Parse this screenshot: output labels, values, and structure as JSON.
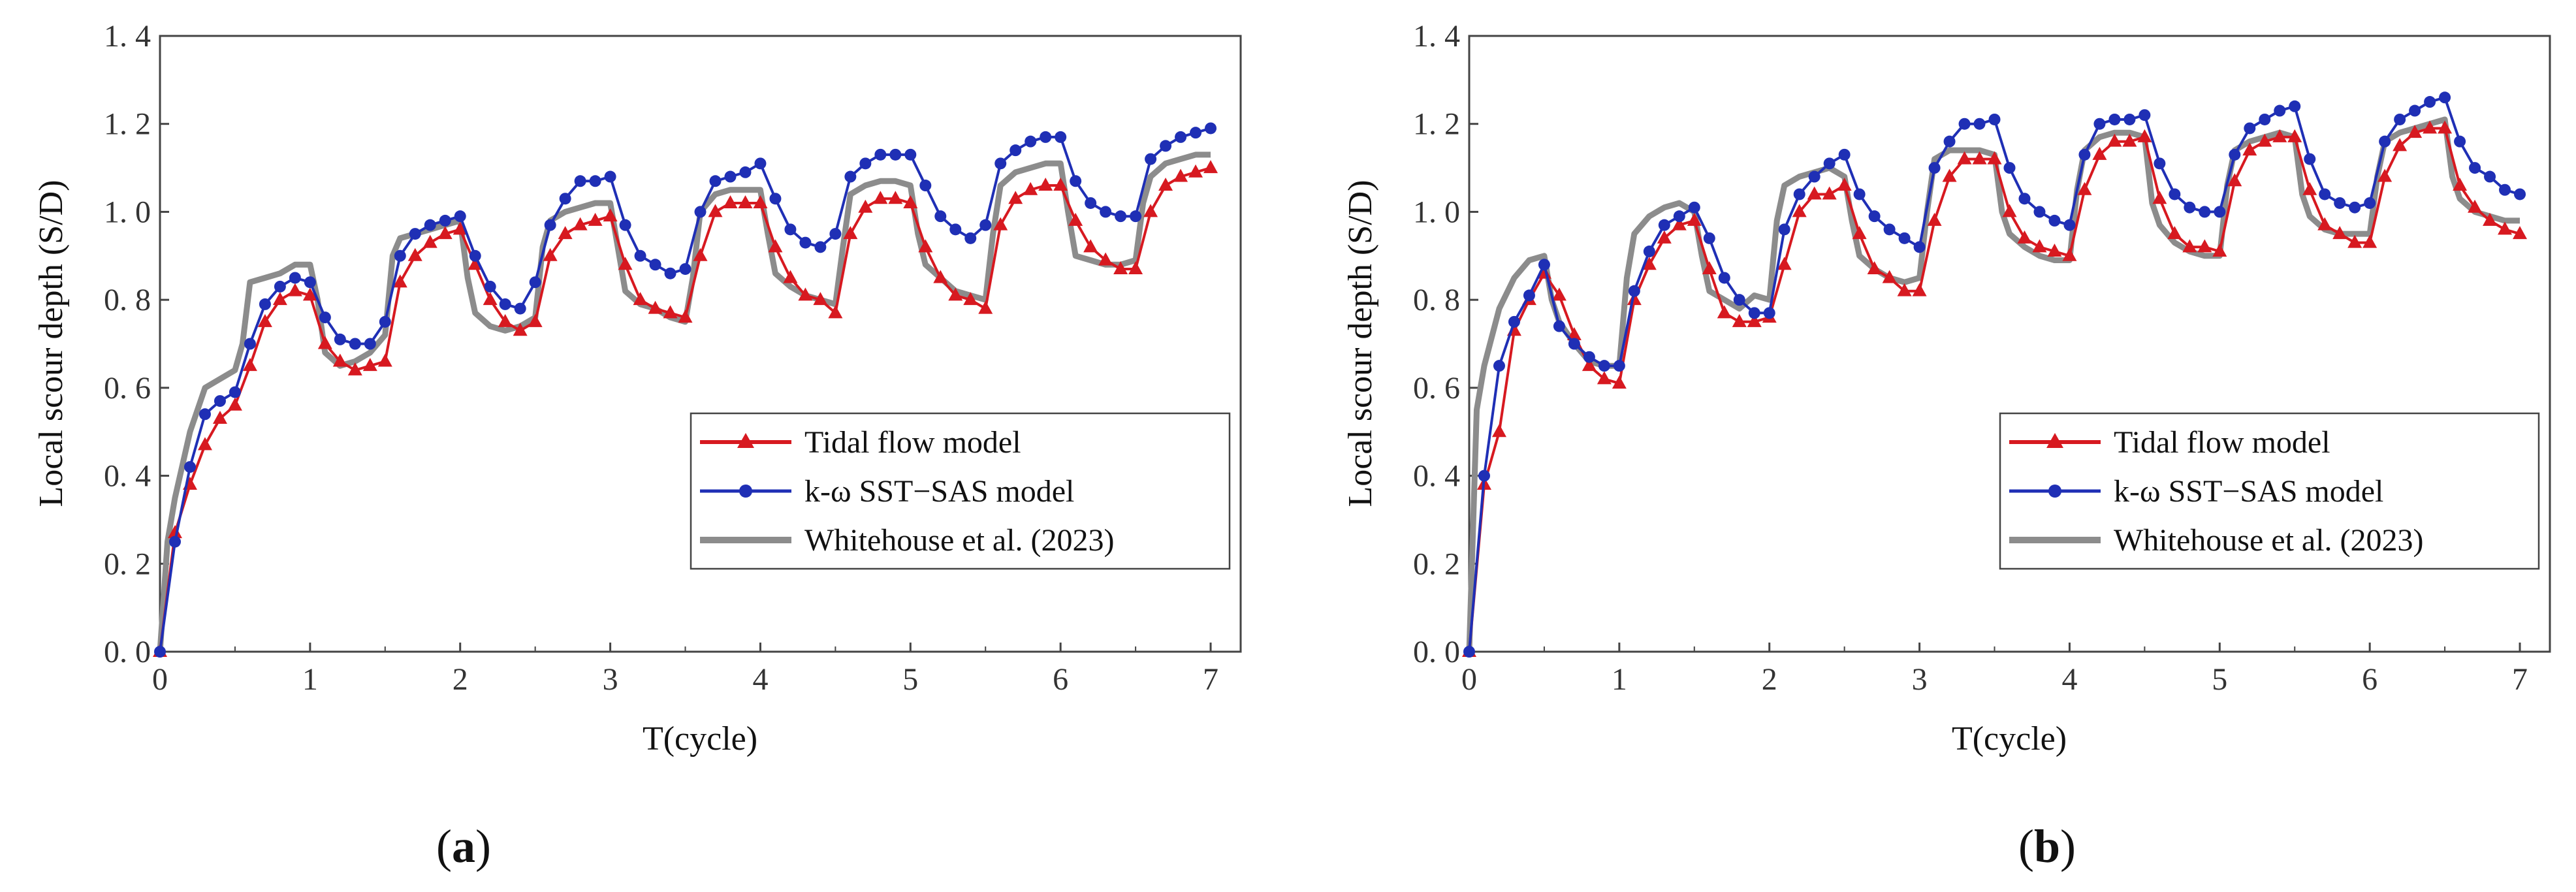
{
  "panels_labels": [
    {
      "open": "(",
      "letter": "a",
      "close": ")"
    },
    {
      "open": "(",
      "letter": "b",
      "close": ")"
    }
  ],
  "colors": {
    "tidal": "#d71920",
    "sst": "#1f2fb5",
    "white": "#8c8c8c",
    "axis": "#444444"
  },
  "chart_data": [
    {
      "type": "line",
      "xlabel": "T(cycle)",
      "ylabel": "Local scour depth (S/D)",
      "xlim": [
        0,
        7.2
      ],
      "ylim": [
        0,
        1.4
      ],
      "xticks": [
        0,
        1,
        2,
        3,
        4,
        5,
        6,
        7
      ],
      "yticks": [
        0.0,
        0.2,
        0.4,
        0.6,
        0.8,
        1.0,
        1.2,
        1.4
      ],
      "ytick_labels": [
        "0. 0",
        "0. 2",
        "0. 4",
        "0. 6",
        "0. 8",
        "1. 0",
        "1. 2",
        "1. 4"
      ],
      "legend": [
        "Tidal flow model",
        "k-ω SST−SAS model",
        "Whitehouse et al. (2023)"
      ],
      "series": [
        {
          "name": "Tidal flow model",
          "marker": "triangle",
          "x": [
            0,
            0.1,
            0.2,
            0.3,
            0.4,
            0.5,
            0.6,
            0.7,
            0.8,
            0.9,
            1.0,
            1.1,
            1.2,
            1.3,
            1.4,
            1.5,
            1.6,
            1.7,
            1.8,
            1.9,
            2.0,
            2.1,
            2.2,
            2.3,
            2.4,
            2.5,
            2.6,
            2.7,
            2.8,
            2.9,
            3.0,
            3.1,
            3.2,
            3.3,
            3.4,
            3.5,
            3.6,
            3.7,
            3.8,
            3.9,
            4.0,
            4.1,
            4.2,
            4.3,
            4.4,
            4.5,
            4.6,
            4.7,
            4.8,
            4.9,
            5.0,
            5.1,
            5.2,
            5.3,
            5.4,
            5.5,
            5.6,
            5.7,
            5.8,
            5.9,
            6.0,
            6.1,
            6.2,
            6.3,
            6.4,
            6.5,
            6.6,
            6.7,
            6.8,
            6.9,
            7.0
          ],
          "y": [
            0.0,
            0.27,
            0.38,
            0.47,
            0.53,
            0.56,
            0.65,
            0.75,
            0.8,
            0.82,
            0.81,
            0.7,
            0.66,
            0.64,
            0.65,
            0.66,
            0.84,
            0.9,
            0.93,
            0.95,
            0.96,
            0.88,
            0.8,
            0.75,
            0.73,
            0.75,
            0.9,
            0.95,
            0.97,
            0.98,
            0.99,
            0.88,
            0.8,
            0.78,
            0.77,
            0.76,
            0.9,
            1.0,
            1.02,
            1.02,
            1.02,
            0.92,
            0.85,
            0.81,
            0.8,
            0.77,
            0.95,
            1.01,
            1.03,
            1.03,
            1.02,
            0.92,
            0.85,
            0.81,
            0.8,
            0.78,
            0.97,
            1.03,
            1.05,
            1.06,
            1.06,
            0.98,
            0.92,
            0.89,
            0.87,
            0.87,
            1.0,
            1.06,
            1.08,
            1.09,
            1.1
          ]
        },
        {
          "name": "k-ω SST−SAS model",
          "marker": "circle",
          "x": [
            0,
            0.1,
            0.2,
            0.3,
            0.4,
            0.5,
            0.6,
            0.7,
            0.8,
            0.9,
            1.0,
            1.1,
            1.2,
            1.3,
            1.4,
            1.5,
            1.6,
            1.7,
            1.8,
            1.9,
            2.0,
            2.1,
            2.2,
            2.3,
            2.4,
            2.5,
            2.6,
            2.7,
            2.8,
            2.9,
            3.0,
            3.1,
            3.2,
            3.3,
            3.4,
            3.5,
            3.6,
            3.7,
            3.8,
            3.9,
            4.0,
            4.1,
            4.2,
            4.3,
            4.4,
            4.5,
            4.6,
            4.7,
            4.8,
            4.9,
            5.0,
            5.1,
            5.2,
            5.3,
            5.4,
            5.5,
            5.6,
            5.7,
            5.8,
            5.9,
            6.0,
            6.1,
            6.2,
            6.3,
            6.4,
            6.5,
            6.6,
            6.7,
            6.8,
            6.9,
            7.0
          ],
          "y": [
            0.0,
            0.25,
            0.42,
            0.54,
            0.57,
            0.59,
            0.7,
            0.79,
            0.83,
            0.85,
            0.84,
            0.76,
            0.71,
            0.7,
            0.7,
            0.75,
            0.9,
            0.95,
            0.97,
            0.98,
            0.99,
            0.9,
            0.83,
            0.79,
            0.78,
            0.84,
            0.97,
            1.03,
            1.07,
            1.07,
            1.08,
            0.97,
            0.9,
            0.88,
            0.86,
            0.87,
            1.0,
            1.07,
            1.08,
            1.09,
            1.11,
            1.03,
            0.96,
            0.93,
            0.92,
            0.95,
            1.08,
            1.11,
            1.13,
            1.13,
            1.13,
            1.06,
            0.99,
            0.96,
            0.94,
            0.97,
            1.11,
            1.14,
            1.16,
            1.17,
            1.17,
            1.07,
            1.02,
            1.0,
            0.99,
            0.99,
            1.12,
            1.15,
            1.17,
            1.18,
            1.19
          ]
        },
        {
          "name": "Whitehouse et al. (2023)",
          "marker": "none",
          "x": [
            0,
            0.05,
            0.1,
            0.2,
            0.3,
            0.4,
            0.5,
            0.55,
            0.6,
            0.7,
            0.8,
            0.9,
            1.0,
            1.05,
            1.1,
            1.2,
            1.3,
            1.4,
            1.5,
            1.55,
            1.6,
            1.7,
            1.8,
            1.9,
            2.0,
            2.05,
            2.1,
            2.2,
            2.3,
            2.4,
            2.5,
            2.55,
            2.6,
            2.7,
            2.8,
            2.9,
            3.0,
            3.05,
            3.1,
            3.2,
            3.3,
            3.4,
            3.5,
            3.55,
            3.6,
            3.7,
            3.8,
            3.9,
            4.0,
            4.05,
            4.1,
            4.2,
            4.3,
            4.4,
            4.5,
            4.55,
            4.6,
            4.7,
            4.8,
            4.9,
            5.0,
            5.05,
            5.1,
            5.2,
            5.3,
            5.4,
            5.5,
            5.55,
            5.6,
            5.7,
            5.8,
            5.9,
            6.0,
            6.05,
            6.1,
            6.2,
            6.3,
            6.4,
            6.5,
            6.55,
            6.6,
            6.7,
            6.8,
            6.9,
            7.0
          ],
          "y": [
            0.0,
            0.25,
            0.35,
            0.5,
            0.6,
            0.62,
            0.64,
            0.7,
            0.84,
            0.85,
            0.86,
            0.88,
            0.88,
            0.8,
            0.68,
            0.65,
            0.66,
            0.68,
            0.72,
            0.9,
            0.94,
            0.95,
            0.96,
            0.97,
            0.98,
            0.85,
            0.77,
            0.74,
            0.73,
            0.74,
            0.76,
            0.92,
            0.98,
            1.0,
            1.01,
            1.02,
            1.02,
            0.92,
            0.82,
            0.79,
            0.78,
            0.76,
            0.75,
            0.85,
            1.0,
            1.04,
            1.05,
            1.05,
            1.05,
            0.95,
            0.86,
            0.83,
            0.81,
            0.8,
            0.79,
            0.92,
            1.04,
            1.06,
            1.07,
            1.07,
            1.06,
            0.95,
            0.88,
            0.85,
            0.82,
            0.81,
            0.8,
            0.95,
            1.06,
            1.09,
            1.1,
            1.11,
            1.11,
            1.0,
            0.9,
            0.89,
            0.88,
            0.88,
            0.89,
            1.02,
            1.08,
            1.11,
            1.12,
            1.13,
            1.13
          ]
        }
      ]
    },
    {
      "type": "line",
      "xlabel": "T(cycle)",
      "ylabel": "Local scour depth (S/D)",
      "xlim": [
        0,
        7.2
      ],
      "ylim": [
        0,
        1.4
      ],
      "xticks": [
        0,
        1,
        2,
        3,
        4,
        5,
        6,
        7
      ],
      "yticks": [
        0.0,
        0.2,
        0.4,
        0.6,
        0.8,
        1.0,
        1.2,
        1.4
      ],
      "ytick_labels": [
        "0. 0",
        "0. 2",
        "0. 4",
        "0. 6",
        "0. 8",
        "1. 0",
        "1. 2",
        "1. 4"
      ],
      "legend": [
        "Tidal flow model",
        "k-ω SST−SAS model",
        "Whitehouse et al. (2023)"
      ],
      "series": [
        {
          "name": "Tidal flow model",
          "marker": "triangle",
          "x": [
            0,
            0.1,
            0.2,
            0.3,
            0.4,
            0.5,
            0.6,
            0.7,
            0.8,
            0.9,
            1.0,
            1.1,
            1.2,
            1.3,
            1.4,
            1.5,
            1.6,
            1.7,
            1.8,
            1.9,
            2.0,
            2.1,
            2.2,
            2.3,
            2.4,
            2.5,
            2.6,
            2.7,
            2.8,
            2.9,
            3.0,
            3.1,
            3.2,
            3.3,
            3.4,
            3.5,
            3.6,
            3.7,
            3.8,
            3.9,
            4.0,
            4.1,
            4.2,
            4.3,
            4.4,
            4.5,
            4.6,
            4.7,
            4.8,
            4.9,
            5.0,
            5.1,
            5.2,
            5.3,
            5.4,
            5.5,
            5.6,
            5.7,
            5.8,
            5.9,
            6.0,
            6.1,
            6.2,
            6.3,
            6.4,
            6.5,
            6.6,
            6.7,
            6.8,
            6.9,
            7.0
          ],
          "y": [
            0.0,
            0.38,
            0.5,
            0.73,
            0.8,
            0.86,
            0.81,
            0.72,
            0.65,
            0.62,
            0.61,
            0.8,
            0.88,
            0.94,
            0.97,
            0.98,
            0.87,
            0.77,
            0.75,
            0.75,
            0.76,
            0.88,
            1.0,
            1.04,
            1.04,
            1.06,
            0.95,
            0.87,
            0.85,
            0.82,
            0.82,
            0.98,
            1.08,
            1.12,
            1.12,
            1.12,
            1.0,
            0.94,
            0.92,
            0.91,
            0.9,
            1.05,
            1.13,
            1.16,
            1.16,
            1.17,
            1.03,
            0.95,
            0.92,
            0.92,
            0.91,
            1.07,
            1.14,
            1.16,
            1.17,
            1.17,
            1.05,
            0.97,
            0.95,
            0.93,
            0.93,
            1.08,
            1.15,
            1.18,
            1.19,
            1.19,
            1.06,
            1.01,
            0.98,
            0.96,
            0.95
          ]
        },
        {
          "name": "k-ω SST−SAS model",
          "marker": "circle",
          "x": [
            0,
            0.1,
            0.2,
            0.3,
            0.4,
            0.5,
            0.6,
            0.7,
            0.8,
            0.9,
            1.0,
            1.1,
            1.2,
            1.3,
            1.4,
            1.5,
            1.6,
            1.7,
            1.8,
            1.9,
            2.0,
            2.1,
            2.2,
            2.3,
            2.4,
            2.5,
            2.6,
            2.7,
            2.8,
            2.9,
            3.0,
            3.1,
            3.2,
            3.3,
            3.4,
            3.5,
            3.6,
            3.7,
            3.8,
            3.9,
            4.0,
            4.1,
            4.2,
            4.3,
            4.4,
            4.5,
            4.6,
            4.7,
            4.8,
            4.9,
            5.0,
            5.1,
            5.2,
            5.3,
            5.4,
            5.5,
            5.6,
            5.7,
            5.8,
            5.9,
            6.0,
            6.1,
            6.2,
            6.3,
            6.4,
            6.5,
            6.6,
            6.7,
            6.8,
            6.9,
            7.0
          ],
          "y": [
            0.0,
            0.4,
            0.65,
            0.75,
            0.81,
            0.88,
            0.74,
            0.7,
            0.67,
            0.65,
            0.65,
            0.82,
            0.91,
            0.97,
            0.99,
            1.01,
            0.94,
            0.85,
            0.8,
            0.77,
            0.77,
            0.96,
            1.04,
            1.08,
            1.11,
            1.13,
            1.04,
            0.99,
            0.96,
            0.94,
            0.92,
            1.1,
            1.16,
            1.2,
            1.2,
            1.21,
            1.1,
            1.03,
            1.0,
            0.98,
            0.97,
            1.13,
            1.2,
            1.21,
            1.21,
            1.22,
            1.11,
            1.04,
            1.01,
            1.0,
            1.0,
            1.13,
            1.19,
            1.21,
            1.23,
            1.24,
            1.12,
            1.04,
            1.02,
            1.01,
            1.02,
            1.16,
            1.21,
            1.23,
            1.25,
            1.26,
            1.16,
            1.1,
            1.08,
            1.05,
            1.04
          ]
        },
        {
          "name": "Whitehouse et al. (2023)",
          "marker": "none",
          "x": [
            0,
            0.05,
            0.1,
            0.2,
            0.3,
            0.4,
            0.5,
            0.55,
            0.6,
            0.7,
            0.8,
            0.9,
            1.0,
            1.05,
            1.1,
            1.2,
            1.3,
            1.4,
            1.5,
            1.55,
            1.6,
            1.7,
            1.8,
            1.9,
            2.0,
            2.05,
            2.1,
            2.2,
            2.3,
            2.4,
            2.5,
            2.55,
            2.6,
            2.7,
            2.8,
            2.9,
            3.0,
            3.05,
            3.1,
            3.2,
            3.3,
            3.4,
            3.5,
            3.55,
            3.6,
            3.7,
            3.8,
            3.9,
            4.0,
            4.05,
            4.1,
            4.2,
            4.3,
            4.4,
            4.5,
            4.55,
            4.6,
            4.7,
            4.8,
            4.9,
            5.0,
            5.05,
            5.1,
            5.2,
            5.3,
            5.4,
            5.5,
            5.55,
            5.6,
            5.7,
            5.8,
            5.9,
            6.0,
            6.05,
            6.1,
            6.2,
            6.3,
            6.4,
            6.5,
            6.55,
            6.6,
            6.7,
            6.8,
            6.9,
            7.0
          ],
          "y": [
            0.0,
            0.55,
            0.65,
            0.78,
            0.85,
            0.89,
            0.9,
            0.8,
            0.75,
            0.7,
            0.66,
            0.65,
            0.65,
            0.85,
            0.95,
            0.99,
            1.01,
            1.02,
            1.0,
            0.9,
            0.82,
            0.8,
            0.78,
            0.81,
            0.8,
            0.98,
            1.06,
            1.08,
            1.09,
            1.1,
            1.08,
            0.98,
            0.9,
            0.87,
            0.85,
            0.84,
            0.85,
            1.0,
            1.12,
            1.14,
            1.14,
            1.14,
            1.13,
            1.0,
            0.95,
            0.92,
            0.9,
            0.89,
            0.89,
            1.05,
            1.14,
            1.17,
            1.18,
            1.18,
            1.17,
            1.02,
            0.97,
            0.93,
            0.91,
            0.9,
            0.9,
            1.06,
            1.14,
            1.16,
            1.17,
            1.18,
            1.17,
            1.04,
            0.99,
            0.96,
            0.95,
            0.95,
            0.95,
            1.08,
            1.16,
            1.18,
            1.19,
            1.2,
            1.21,
            1.08,
            1.03,
            1.0,
            0.99,
            0.98,
            0.98
          ]
        }
      ]
    }
  ]
}
